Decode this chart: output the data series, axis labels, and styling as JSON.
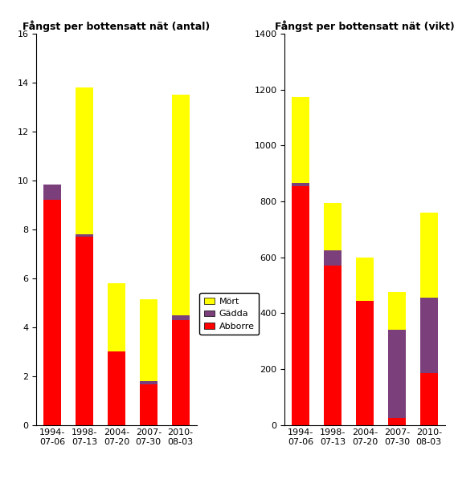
{
  "categories": [
    "1994-\n07-06",
    "1998-\n07-13",
    "2004-\n07-20",
    "2007-\n07-30",
    "2010-\n08-03"
  ],
  "antal": {
    "abborre": [
      9.2,
      7.7,
      3.0,
      1.65,
      4.3
    ],
    "gadda": [
      0.65,
      0.1,
      0.0,
      0.15,
      0.2
    ],
    "mort": [
      0.0,
      6.0,
      2.8,
      3.35,
      9.0
    ]
  },
  "vikt": {
    "abborre": [
      855,
      570,
      445,
      25,
      185
    ],
    "gadda": [
      10,
      55,
      0,
      315,
      270
    ],
    "mort": [
      310,
      170,
      155,
      135,
      305
    ]
  },
  "color_abborre": "#ff0000",
  "color_gadda": "#7b3f7b",
  "color_mort": "#ffff00",
  "title_antal": "Fångst per bottensatt nät (antal)",
  "title_vikt": "Fångst per bottensatt nät (vikt)",
  "ylim_antal": [
    0,
    16
  ],
  "ylim_vikt": [
    0,
    1400
  ],
  "yticks_antal": [
    0,
    2,
    4,
    6,
    8,
    10,
    12,
    14,
    16
  ],
  "yticks_vikt": [
    0,
    200,
    400,
    600,
    800,
    1000,
    1200,
    1400
  ],
  "legend_labels": [
    "Mört",
    "Gädda",
    "Abborre"
  ],
  "legend_colors": [
    "#ffff00",
    "#7b3f7b",
    "#ff0000"
  ],
  "bar_width": 0.55,
  "background_color": "#ffffff",
  "title_fontsize": 9,
  "tick_fontsize": 8,
  "legend_fontsize": 8
}
